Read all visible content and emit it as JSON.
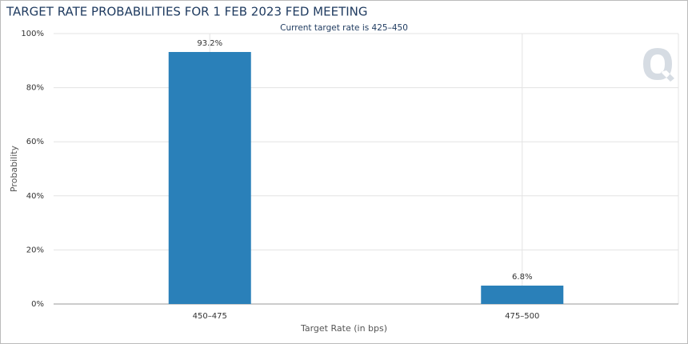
{
  "chart_data": {
    "type": "bar",
    "title": "TARGET RATE PROBABILITIES FOR 1 FEB 2023 FED MEETING",
    "subtitle": "Current target rate is 425–450",
    "x_label": "Target Rate (in bps)",
    "y_label": "Probability",
    "categories": [
      "450–475",
      "475–500"
    ],
    "values": [
      93.2,
      6.8
    ],
    "value_labels": [
      "93.2%",
      "6.8%"
    ],
    "color": "#2a80b9",
    "ylim": [
      0,
      100
    ],
    "yticks": [
      {
        "value": 0,
        "label": "0%"
      },
      {
        "value": 20,
        "label": "20%"
      },
      {
        "value": 40,
        "label": "40%"
      },
      {
        "value": 60,
        "label": "60%"
      },
      {
        "value": 80,
        "label": "80%"
      },
      {
        "value": 100,
        "label": "100%"
      }
    ],
    "grid": true
  }
}
